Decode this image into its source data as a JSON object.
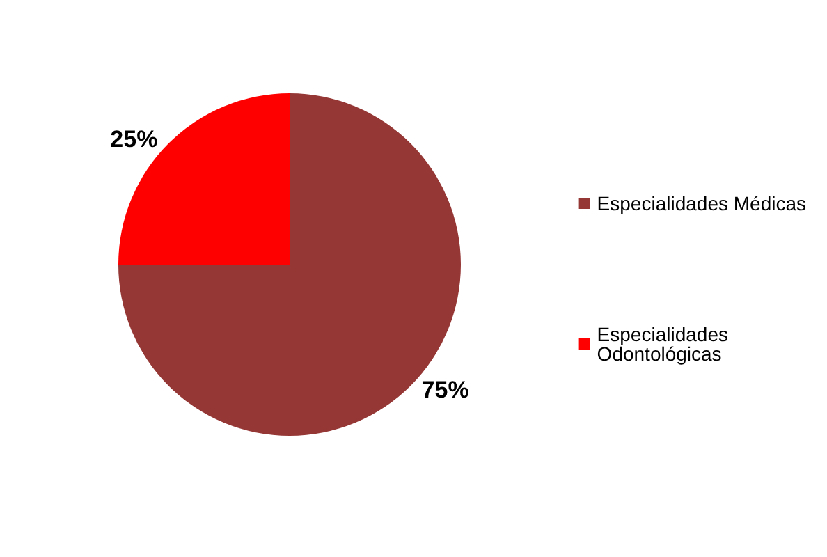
{
  "chart_data": {
    "type": "pie",
    "categories": [
      "Especialidades Médicas",
      "Especialidades Odontológicas"
    ],
    "values": [
      75,
      25
    ],
    "colors": [
      "#953735",
      "#ff0000"
    ],
    "value_labels": [
      "75%",
      "25%"
    ],
    "legend": "right"
  }
}
